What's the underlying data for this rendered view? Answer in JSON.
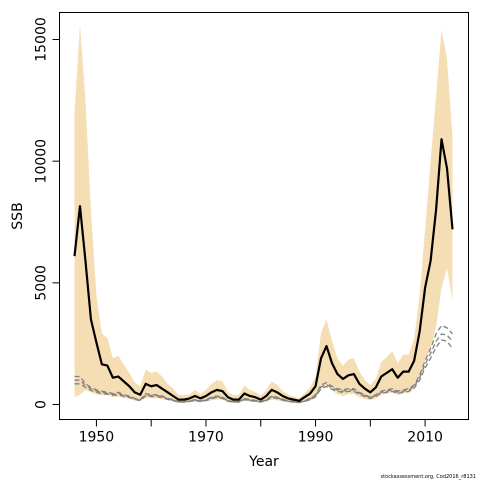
{
  "chart_data": {
    "type": "line",
    "title": "",
    "xlabel": "Year",
    "ylabel": "SSB",
    "xlim": [
      1944,
      2018
    ],
    "ylim": [
      -500,
      16000
    ],
    "xticks": [
      1950,
      1960,
      1970,
      1980,
      1990,
      2000,
      2010
    ],
    "xtick_labels": [
      "1950",
      "",
      "1970",
      "",
      "1990",
      "",
      "2010"
    ],
    "yticks": [
      0,
      5000,
      10000,
      15000
    ],
    "ytick_labels": [
      "0",
      "5000",
      "10000",
      "15000"
    ],
    "grid": false,
    "legend": "none",
    "credit": "stockassessment.org, Cod2016_r8131",
    "colors": {
      "band": "#f5deb3",
      "estimate": "#000000",
      "retro": "#808080"
    },
    "x": [
      1946,
      1947,
      1948,
      1949,
      1950,
      1951,
      1952,
      1953,
      1954,
      1955,
      1956,
      1957,
      1958,
      1959,
      1960,
      1961,
      1962,
      1963,
      1964,
      1965,
      1966,
      1967,
      1968,
      1969,
      1970,
      1971,
      1972,
      1973,
      1974,
      1975,
      1976,
      1977,
      1978,
      1979,
      1980,
      1981,
      1982,
      1983,
      1984,
      1985,
      1986,
      1987,
      1988,
      1989,
      1990,
      1991,
      1992,
      1993,
      1994,
      1995,
      1996,
      1997,
      1998,
      1999,
      2000,
      2001,
      2002,
      2003,
      2004,
      2005,
      2006,
      2007,
      2008,
      2009,
      2010,
      2011,
      2012,
      2013,
      2014,
      2015
    ],
    "series": [
      {
        "name": "SSB",
        "values": [
          6100,
          8150,
          5900,
          3500,
          2550,
          1650,
          1600,
          1100,
          1150,
          950,
          750,
          500,
          400,
          850,
          750,
          800,
          650,
          500,
          350,
          200,
          200,
          250,
          350,
          250,
          350,
          500,
          600,
          550,
          300,
          200,
          200,
          450,
          350,
          300,
          200,
          350,
          600,
          500,
          350,
          250,
          200,
          150,
          300,
          450,
          750,
          1900,
          2400,
          1700,
          1250,
          1050,
          1200,
          1250,
          850,
          650,
          500,
          700,
          1150,
          1300,
          1450,
          1100,
          1350,
          1350,
          1800,
          3000,
          4800,
          5900,
          8000,
          10900,
          9700,
          7200
        ]
      },
      {
        "name": "",
        "type": "band",
        "upper": [
          12000,
          15600,
          12500,
          8000,
          4500,
          2900,
          2750,
          1900,
          2000,
          1650,
          1300,
          900,
          750,
          1450,
          1300,
          1350,
          1150,
          850,
          650,
          400,
          380,
          420,
          600,
          430,
          600,
          850,
          1000,
          950,
          520,
          380,
          400,
          780,
          600,
          520,
          360,
          600,
          950,
          800,
          560,
          400,
          330,
          260,
          480,
          700,
          1150,
          2950,
          3500,
          2600,
          1900,
          1600,
          1850,
          1900,
          1350,
          1000,
          800,
          1050,
          1750,
          1950,
          2200,
          1700,
          2050,
          2050,
          2700,
          4500,
          7200,
          10000,
          12700,
          15400,
          14200,
          11000
        ],
        "lower": [
          300,
          400,
          600,
          500,
          400,
          380,
          400,
          300,
          320,
          270,
          230,
          170,
          140,
          260,
          250,
          250,
          220,
          170,
          120,
          70,
          70,
          90,
          120,
          90,
          120,
          170,
          210,
          190,
          100,
          70,
          70,
          150,
          120,
          100,
          70,
          120,
          200,
          170,
          120,
          85,
          70,
          50,
          100,
          150,
          250,
          650,
          800,
          580,
          420,
          350,
          420,
          430,
          300,
          220,
          170,
          240,
          400,
          450,
          500,
          380,
          470,
          470,
          650,
          1100,
          1800,
          2300,
          3200,
          4800,
          5600,
          4300
        ]
      },
      {
        "name": "",
        "type": "retro",
        "values": [
          1150,
          1150,
          850,
          700,
          600,
          550,
          500,
          450,
          500,
          400,
          350,
          250,
          200,
          450,
          400,
          400,
          350,
          250,
          200,
          120,
          120,
          150,
          200,
          150,
          200,
          300,
          350,
          300,
          170,
          120,
          120,
          250,
          200,
          170,
          120,
          200,
          350,
          300,
          220,
          150,
          120,
          100,
          150,
          250,
          400,
          800,
          900,
          750,
          650,
          600,
          650,
          650,
          500,
          400,
          300,
          400,
          550,
          600,
          650,
          550,
          600,
          650,
          800,
          1200,
          1800,
          2300,
          2900,
          3250,
          3150,
          2900
        ]
      },
      {
        "name": "",
        "type": "retro",
        "values": [
          1000,
          1000,
          780,
          650,
          550,
          500,
          460,
          420,
          450,
          370,
          320,
          230,
          180,
          400,
          370,
          370,
          320,
          230,
          180,
          110,
          110,
          140,
          180,
          140,
          180,
          270,
          320,
          280,
          150,
          110,
          110,
          230,
          180,
          150,
          110,
          180,
          320,
          270,
          200,
          140,
          110,
          90,
          140,
          230,
          360,
          720,
          820,
          680,
          600,
          550,
          600,
          600,
          460,
          370,
          280,
          370,
          500,
          550,
          600,
          500,
          550,
          600,
          740,
          1100,
          1650,
          2100,
          2600,
          2900,
          2850,
          2600
        ]
      },
      {
        "name": "",
        "type": "retro",
        "values": [
          850,
          850,
          700,
          580,
          500,
          450,
          420,
          380,
          400,
          330,
          290,
          210,
          160,
          360,
          330,
          330,
          290,
          210,
          160,
          100,
          100,
          125,
          160,
          125,
          160,
          240,
          290,
          250,
          135,
          100,
          100,
          200,
          160,
          135,
          100,
          160,
          290,
          240,
          180,
          125,
          100,
          80,
          125,
          200,
          320,
          650,
          740,
          620,
          540,
          500,
          540,
          540,
          420,
          330,
          250,
          330,
          450,
          500,
          540,
          450,
          500,
          540,
          670,
          1000,
          1500,
          1900,
          2350,
          2650,
          2600,
          2300
        ]
      }
    ]
  }
}
